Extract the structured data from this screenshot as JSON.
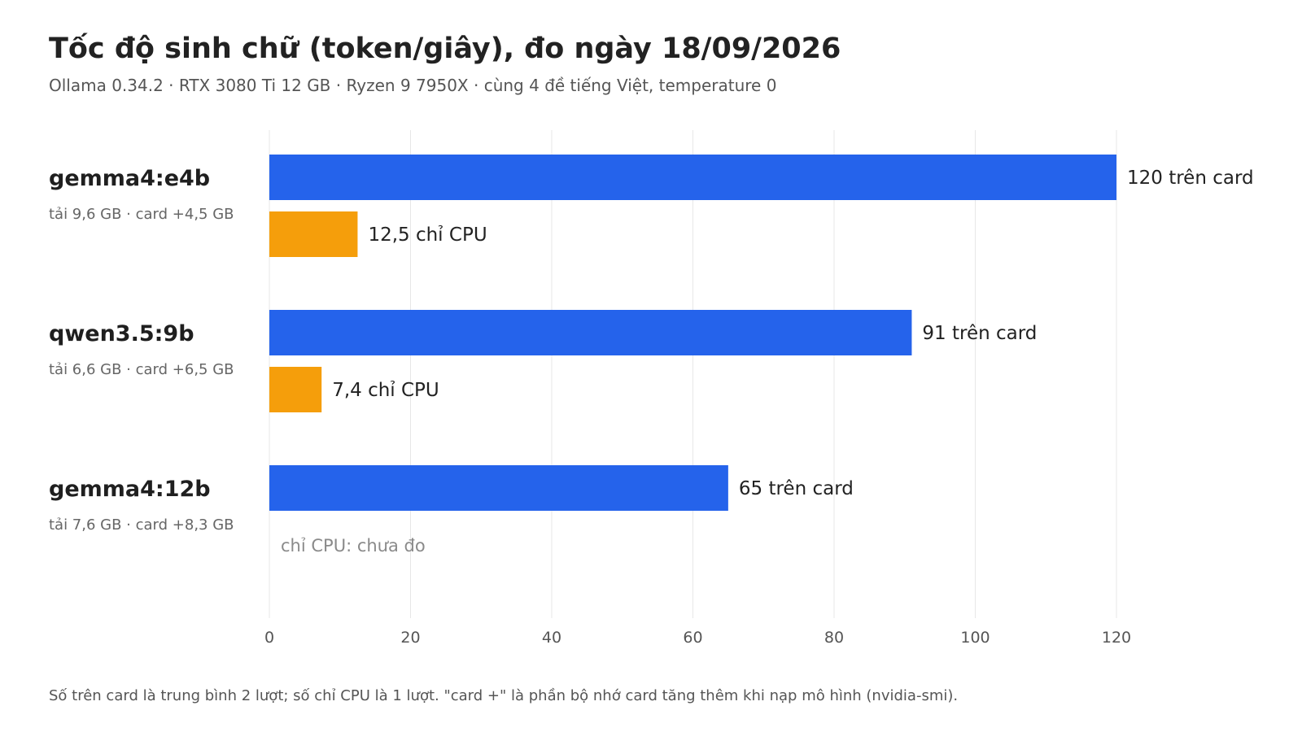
{
  "title": "Tốc độ sinh chữ (token/giây), đo ngày 18/09/2026",
  "subtitle": "Ollama 0.34.2 · RTX 3080 Ti 12 GB · Ryzen 9 7950X · cùng 4 đề tiếng Việt, temperature 0",
  "footnote": "Số trên card là trung bình 2 lượt; số chỉ CPU là 1 lượt. \"card +\" là phần bộ nhớ card tăng thêm khi nạp mô hình (nvidia-smi).",
  "colors": {
    "gpu": "#2563eb",
    "cpu": "#f59e0b"
  },
  "chart_data": {
    "type": "bar",
    "orientation": "horizontal",
    "title": "Tốc độ sinh chữ (token/giây), đo ngày 18/09/2026",
    "subtitle": "Ollama 0.34.2 · RTX 3080 Ti 12 GB · Ryzen 9 7950X · cùng 4 đề tiếng Việt, temperature 0",
    "xlabel": "",
    "ylabel": "",
    "xlim": [
      0,
      120
    ],
    "x_ticks": [
      0,
      20,
      40,
      60,
      80,
      100,
      120
    ],
    "grid": true,
    "legend": "none",
    "categories": [
      "gemma4:e4b",
      "qwen3.5:9b",
      "gemma4:12b"
    ],
    "category_details": [
      "tải 9,6 GB · card +4,5 GB",
      "tải 6,6 GB · card +6,5 GB",
      "tải 7,6 GB · card +8,3 GB"
    ],
    "series": [
      {
        "key": "gpu",
        "values": [
          120,
          91,
          65
        ],
        "labels": [
          "120 trên card",
          "91 trên card",
          "65 trên card"
        ]
      },
      {
        "key": "cpu",
        "values": [
          12.5,
          7.4,
          null
        ],
        "labels": [
          "12,5 chỉ CPU",
          "7,4 chỉ CPU",
          "chỉ CPU: chưa đo"
        ]
      }
    ]
  }
}
